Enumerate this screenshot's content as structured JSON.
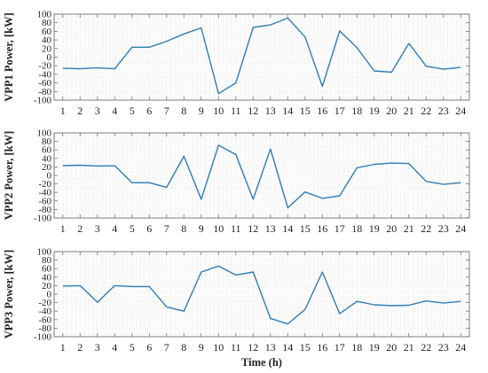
{
  "figure": {
    "xlabel": "Time (h)"
  },
  "colors": {
    "line": "#2f7db7",
    "frame": "#6f6f6f",
    "grid": "#d9d9d9",
    "text": "#222222"
  },
  "chart_data": [
    {
      "type": "line",
      "ylabel": "VPP1 Power, [kW]",
      "xlabel": "",
      "x": [
        1,
        2,
        3,
        4,
        5,
        6,
        7,
        8,
        9,
        10,
        11,
        12,
        13,
        14,
        15,
        16,
        17,
        18,
        19,
        20,
        21,
        22,
        23,
        24
      ],
      "y": [
        -26,
        -27,
        -25,
        -27,
        23,
        23,
        37,
        54,
        68,
        -85,
        -60,
        69,
        75,
        91,
        47,
        -68,
        61,
        22,
        -32,
        -35,
        32,
        -21,
        -28,
        -24
      ],
      "xlim": [
        0.5,
        24.5
      ],
      "ylim": [
        -100,
        100
      ],
      "yticks": [
        -100,
        -80,
        -60,
        -40,
        -20,
        0,
        20,
        40,
        60,
        80,
        100
      ],
      "grid": "on"
    },
    {
      "type": "line",
      "ylabel": "VPP2 Power, [kW]",
      "xlabel": "",
      "x": [
        1,
        2,
        3,
        4,
        5,
        6,
        7,
        8,
        9,
        10,
        11,
        12,
        13,
        14,
        15,
        16,
        17,
        18,
        19,
        20,
        21,
        22,
        23,
        24
      ],
      "y": [
        23,
        24,
        22,
        23,
        -17,
        -17,
        -28,
        45,
        -56,
        71,
        49,
        -56,
        62,
        -76,
        -39,
        -54,
        -48,
        18,
        26,
        29,
        28,
        -14,
        -21,
        -17
      ],
      "xlim": [
        0.5,
        24.5
      ],
      "ylim": [
        -100,
        100
      ],
      "yticks": [
        -100,
        -80,
        -60,
        -40,
        -20,
        0,
        20,
        40,
        60,
        80,
        100
      ],
      "grid": "on"
    },
    {
      "type": "line",
      "ylabel": "VPP3 Power, [kW]",
      "xlabel": "Time (h)",
      "x": [
        1,
        2,
        3,
        4,
        5,
        6,
        7,
        8,
        9,
        10,
        11,
        12,
        13,
        14,
        15,
        16,
        17,
        18,
        19,
        20,
        21,
        22,
        23,
        24
      ],
      "y": [
        19,
        20,
        -19,
        20,
        18,
        18,
        -30,
        -40,
        52,
        66,
        45,
        52,
        -57,
        -70,
        -36,
        52,
        -46,
        -17,
        -25,
        -27,
        -26,
        -16,
        -21,
        -17
      ],
      "xlim": [
        0.5,
        24.5
      ],
      "ylim": [
        -100,
        100
      ],
      "yticks": [
        -100,
        -80,
        -60,
        -40,
        -20,
        0,
        20,
        40,
        60,
        80,
        100
      ],
      "grid": "on"
    }
  ]
}
